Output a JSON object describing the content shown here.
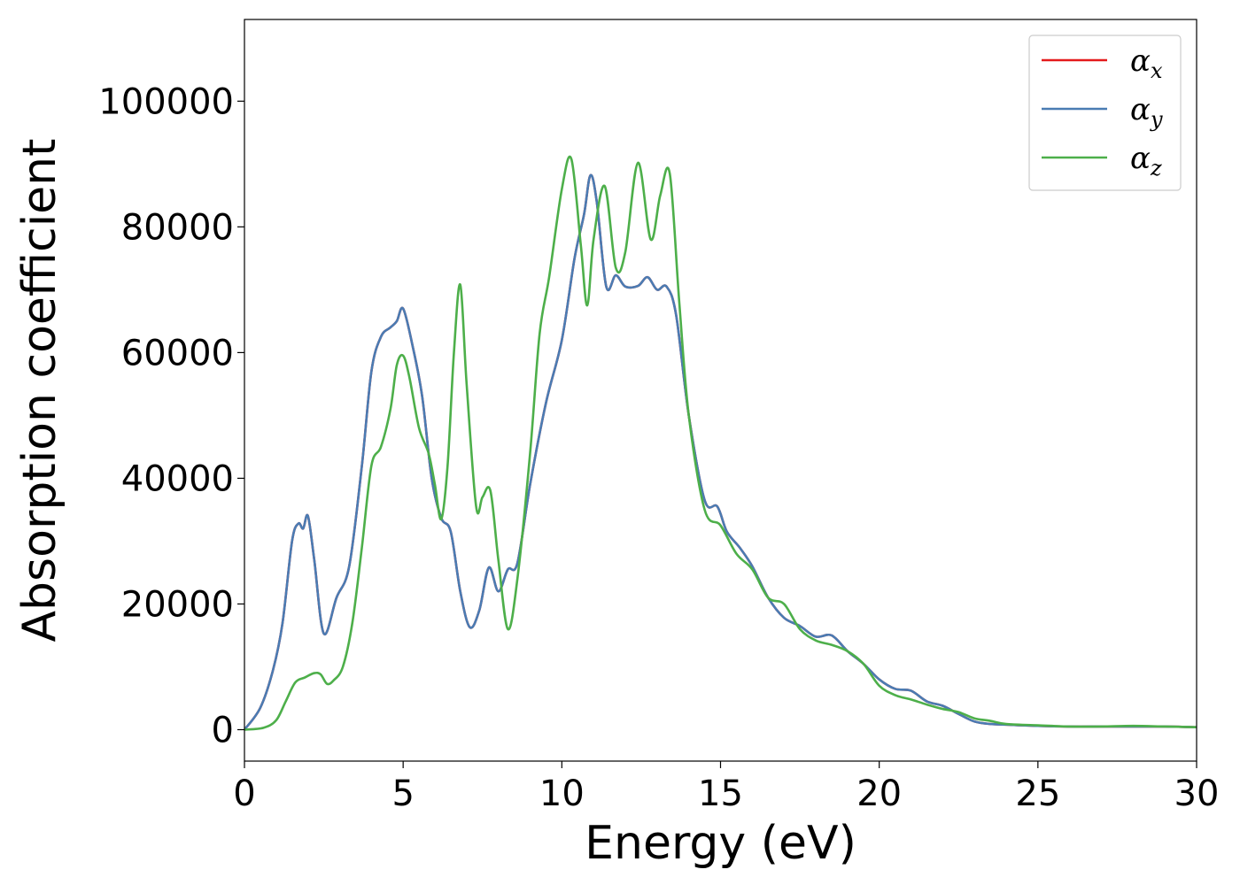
{
  "chart_data": {
    "type": "line",
    "title": "",
    "xlabel": "Energy (eV)",
    "ylabel": "Absorption coefficient",
    "xlim": [
      0,
      30
    ],
    "ylim": [
      -5000,
      113000
    ],
    "xticks": [
      0,
      5,
      10,
      15,
      20,
      25,
      30
    ],
    "yticks": [
      0,
      20000,
      40000,
      60000,
      80000,
      100000
    ],
    "grid": false,
    "legend_position": "top-right",
    "series": [
      {
        "name": "α",
        "subscript": "x",
        "color": "#e41a1c",
        "x": [
          0,
          0.5,
          0.9,
          1.2,
          1.5,
          1.7,
          1.85,
          2.0,
          2.2,
          2.5,
          2.9,
          3.3,
          3.7,
          4.0,
          4.3,
          4.6,
          4.8,
          5.0,
          5.3,
          5.6,
          5.9,
          6.2,
          6.5,
          6.8,
          7.1,
          7.4,
          7.7,
          8.0,
          8.3,
          8.6,
          9.0,
          9.5,
          10.0,
          10.4,
          10.7,
          10.9,
          11.1,
          11.4,
          11.7,
          12.0,
          12.4,
          12.7,
          13.0,
          13.3,
          13.6,
          14.0,
          14.5,
          14.9,
          15.2,
          15.6,
          16.0,
          16.5,
          17.0,
          17.5,
          18.0,
          18.5,
          19.0,
          19.5,
          20.0,
          20.5,
          21.0,
          21.5,
          22.0,
          22.5,
          23.0,
          23.5,
          24.0,
          25.0,
          26.0,
          27.0,
          28.0,
          29.0,
          30.0
        ],
        "values": [
          0,
          3500,
          9500,
          17000,
          30000,
          32800,
          32000,
          34000,
          27000,
          15300,
          21000,
          26000,
          42000,
          57000,
          62500,
          64000,
          65000,
          67000,
          61000,
          53000,
          40000,
          33700,
          31500,
          22000,
          16300,
          19000,
          25800,
          22000,
          25500,
          26500,
          39000,
          52000,
          62000,
          75000,
          82000,
          88200,
          84000,
          70500,
          72300,
          70500,
          70600,
          72000,
          70000,
          70500,
          66000,
          50000,
          36500,
          35500,
          31500,
          29000,
          26000,
          21000,
          17800,
          16500,
          14800,
          15000,
          12500,
          10500,
          8000,
          6500,
          6200,
          4500,
          3800,
          2500,
          1300,
          900,
          800,
          600,
          500,
          500,
          500,
          500,
          400
        ]
      },
      {
        "name": "α",
        "subscript": "y",
        "color": "#4a7cb3",
        "x": [
          0,
          0.5,
          0.9,
          1.2,
          1.5,
          1.7,
          1.85,
          2.0,
          2.2,
          2.5,
          2.9,
          3.3,
          3.7,
          4.0,
          4.3,
          4.6,
          4.8,
          5.0,
          5.3,
          5.6,
          5.9,
          6.2,
          6.5,
          6.8,
          7.1,
          7.4,
          7.7,
          8.0,
          8.3,
          8.6,
          9.0,
          9.5,
          10.0,
          10.4,
          10.7,
          10.9,
          11.1,
          11.4,
          11.7,
          12.0,
          12.4,
          12.7,
          13.0,
          13.3,
          13.6,
          14.0,
          14.5,
          14.9,
          15.2,
          15.6,
          16.0,
          16.5,
          17.0,
          17.5,
          18.0,
          18.5,
          19.0,
          19.5,
          20.0,
          20.5,
          21.0,
          21.5,
          22.0,
          22.5,
          23.0,
          23.5,
          24.0,
          25.0,
          26.0,
          27.0,
          28.0,
          29.0,
          30.0
        ],
        "values": [
          0,
          3500,
          9500,
          17000,
          30000,
          32800,
          32000,
          34000,
          27000,
          15300,
          21000,
          26000,
          42000,
          57000,
          62500,
          64000,
          65000,
          67000,
          61000,
          53000,
          40000,
          33700,
          31500,
          22000,
          16300,
          19000,
          25800,
          22000,
          25500,
          26500,
          39000,
          52000,
          62000,
          75000,
          82000,
          88200,
          84000,
          70500,
          72300,
          70500,
          70600,
          72000,
          70000,
          70500,
          66000,
          50000,
          36500,
          35500,
          31500,
          29000,
          26000,
          21000,
          17800,
          16500,
          14800,
          15000,
          12500,
          10500,
          8000,
          6500,
          6200,
          4500,
          3800,
          2500,
          1300,
          900,
          800,
          600,
          500,
          500,
          500,
          500,
          400
        ]
      },
      {
        "name": "α",
        "subscript": "z",
        "color": "#4daf4a",
        "x": [
          0,
          0.6,
          1.0,
          1.3,
          1.6,
          1.9,
          2.2,
          2.4,
          2.6,
          2.8,
          3.1,
          3.4,
          3.7,
          4.0,
          4.3,
          4.6,
          4.8,
          5.0,
          5.2,
          5.5,
          5.8,
          6.0,
          6.2,
          6.4,
          6.6,
          6.8,
          7.0,
          7.3,
          7.5,
          7.75,
          8.0,
          8.3,
          8.6,
          9.0,
          9.3,
          9.6,
          10.0,
          10.3,
          10.6,
          10.8,
          11.0,
          11.35,
          11.7,
          12.0,
          12.4,
          12.8,
          13.1,
          13.4,
          13.7,
          14.0,
          14.5,
          15.0,
          15.5,
          16.0,
          16.5,
          17.0,
          17.5,
          18.0,
          18.5,
          19.0,
          19.5,
          20.0,
          20.5,
          21.0,
          21.5,
          22.0,
          22.5,
          23.0,
          23.5,
          24.0,
          25.0,
          26.0,
          27.0,
          28.0,
          29.0,
          30.0
        ],
        "values": [
          0,
          300,
          1500,
          4500,
          7500,
          8300,
          9000,
          8800,
          7300,
          7800,
          10000,
          17000,
          29000,
          42000,
          45000,
          51000,
          58000,
          59500,
          56000,
          48000,
          44000,
          39000,
          33500,
          42000,
          60000,
          70800,
          55000,
          35500,
          37000,
          38000,
          27000,
          16000,
          24000,
          44000,
          63000,
          72000,
          86000,
          90800,
          77000,
          67500,
          78000,
          86500,
          73500,
          76000,
          90200,
          78000,
          85000,
          88500,
          68000,
          50000,
          35000,
          32500,
          28000,
          25500,
          21000,
          20000,
          16000,
          14200,
          13500,
          12500,
          10500,
          7000,
          5500,
          4800,
          4000,
          3300,
          2800,
          1800,
          1400,
          900,
          700,
          500,
          500,
          600,
          500,
          400
        ]
      }
    ]
  }
}
